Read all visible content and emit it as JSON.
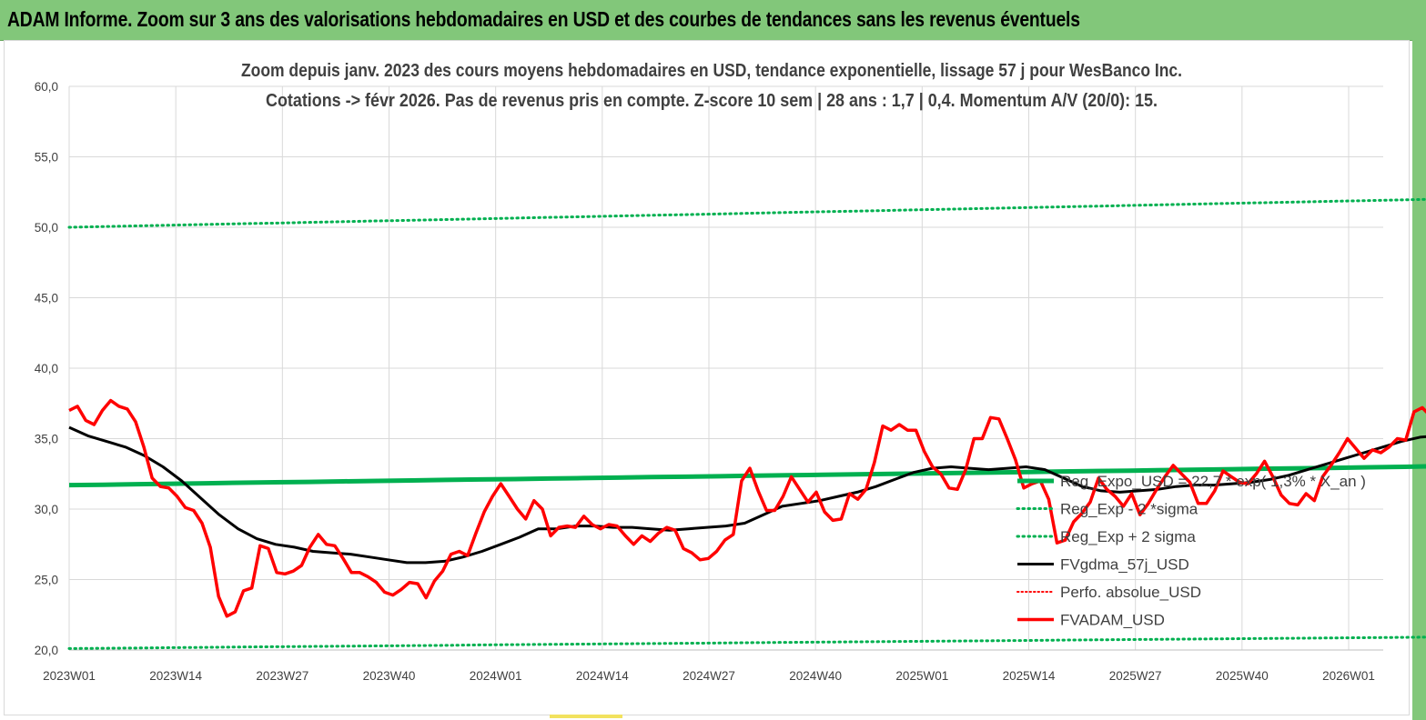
{
  "header": {
    "title": "ADAM Informe. Zoom sur 3 ans des valorisations hebdomadaires en USD et des courbes de tendances sans les revenus éventuels"
  },
  "colors": {
    "banner": "#82c77a",
    "reg_expo": "#00b050",
    "reg_band": "#00b050",
    "fvgdma": "#000000",
    "perfo": "#ff0000",
    "fvadam": "#ff0000",
    "grid": "#d9d9d9"
  },
  "chart_data": {
    "type": "line",
    "title": "Zoom depuis janv. 2023 des cours moyens hebdomadaires en USD, tendance exponentielle, lissage 57 j pour WesBanco Inc.",
    "subtitle": "Cotations -> févr 2026.  Pas de revenus pris en compte. Z-score 10 sem  | 28 ans : 1,7 | 0,4. Momentum A/V (20/0): 15.",
    "xlabel": "",
    "ylabel": "",
    "ylim": [
      20,
      60
    ],
    "y_ticks": [
      "20,0",
      "25,0",
      "30,0",
      "35,0",
      "40,0",
      "45,0",
      "50,0",
      "55,0",
      "60,0"
    ],
    "x_ticks": [
      "2023W01",
      "2023W14",
      "2023W27",
      "2023W40",
      "2024W01",
      "2024W14",
      "2024W27",
      "2024W40",
      "2025W01",
      "2025W14",
      "2025W27",
      "2025W40",
      "2026W01"
    ],
    "grid": "vertical and horizontal",
    "legend_position": "bottom-right",
    "weeks": 168,
    "series": [
      {
        "name": "Reg_Expo_USD = 22,7 * exp( 1,3% *  X_an )",
        "style": "solid-thick",
        "values": [
          31.7,
          31.73,
          31.77,
          31.8,
          31.83,
          31.87,
          31.9,
          31.93,
          31.97,
          32.0,
          32.03,
          32.07,
          32.1,
          32.13,
          32.17,
          32.2,
          32.23,
          32.27,
          32.3,
          32.33,
          32.37,
          32.4,
          32.43,
          32.47,
          32.5,
          32.53,
          32.57,
          32.6,
          32.63,
          32.67,
          32.7,
          32.73,
          32.77,
          32.8,
          32.83,
          32.87,
          32.9,
          32.93,
          32.97,
          33.0,
          33.05
        ]
      },
      {
        "name": "Reg_Exp - 2 *sigma",
        "style": "dotted",
        "values": [
          20.1,
          20.12,
          20.14,
          20.17,
          20.19,
          20.21,
          20.23,
          20.25,
          20.27,
          20.29,
          20.31,
          20.33,
          20.36,
          20.38,
          20.4,
          20.42,
          20.44,
          20.46,
          20.48,
          20.5,
          20.52,
          20.54,
          20.56,
          20.58,
          20.6,
          20.62,
          20.64,
          20.66,
          20.68,
          20.7,
          20.72,
          20.74,
          20.76,
          20.78,
          20.8,
          20.82,
          20.84,
          20.86,
          20.88,
          20.9,
          20.92
        ]
      },
      {
        "name": "Reg_Exp + 2 sigma",
        "style": "dotted",
        "values": [
          50.0,
          50.05,
          50.1,
          50.15,
          50.2,
          50.25,
          50.3,
          50.35,
          50.4,
          50.45,
          50.5,
          50.55,
          50.6,
          50.65,
          50.7,
          50.75,
          50.8,
          50.85,
          50.9,
          50.95,
          51.0,
          51.05,
          51.1,
          51.15,
          51.2,
          51.25,
          51.3,
          51.35,
          51.4,
          51.45,
          51.5,
          51.55,
          51.6,
          51.65,
          51.7,
          51.75,
          51.8,
          51.85,
          51.9,
          51.95,
          52.0
        ]
      },
      {
        "name": "FVgdma_57j_USD",
        "style": "solid",
        "values": [
          35.8,
          35.2,
          34.8,
          34.4,
          33.8,
          33.0,
          32.0,
          30.8,
          29.6,
          28.6,
          27.9,
          27.5,
          27.3,
          27.0,
          26.9,
          26.8,
          26.6,
          26.4,
          26.2,
          26.2,
          26.3,
          26.6,
          27.0,
          27.5,
          28.0,
          28.6,
          28.6,
          28.8,
          28.8,
          28.7,
          28.7,
          28.6,
          28.5,
          28.6,
          28.7,
          28.8,
          29.0,
          29.6,
          30.2,
          30.4,
          30.6,
          30.9,
          31.2,
          31.6,
          32.1,
          32.6,
          32.9,
          33.0,
          32.9,
          32.8,
          32.9,
          33.0,
          32.8,
          32.2,
          31.6,
          31.3,
          31.2,
          31.3,
          31.4,
          31.6,
          31.7,
          31.7,
          31.8,
          31.9,
          32.1,
          32.4,
          32.8,
          33.2,
          33.6,
          34.0,
          34.4,
          34.8,
          35.1,
          35.2
        ]
      },
      {
        "name": "Perfo. absolue_USD",
        "style": "dotted",
        "values": []
      },
      {
        "name": "FVADAM_USD",
        "style": "solid-thick",
        "values": [
          37.0,
          37.3,
          36.3,
          36.0,
          37.0,
          37.7,
          37.3,
          37.1,
          36.2,
          34.4,
          32.2,
          31.6,
          31.5,
          30.9,
          30.1,
          29.9,
          29.0,
          27.3,
          23.8,
          22.4,
          22.7,
          24.2,
          24.4,
          27.4,
          27.2,
          25.5,
          25.4,
          25.6,
          26.0,
          27.3,
          28.2,
          27.5,
          27.4,
          26.5,
          25.5,
          25.5,
          25.2,
          24.8,
          24.1,
          23.9,
          24.3,
          24.8,
          24.7,
          23.7,
          24.9,
          25.6,
          26.8,
          27.0,
          26.7,
          28.3,
          29.8,
          30.9,
          31.8,
          30.9,
          30.0,
          29.3,
          30.6,
          30.0,
          28.1,
          28.7,
          28.8,
          28.7,
          29.5,
          28.9,
          28.6,
          28.9,
          28.8,
          28.1,
          27.5,
          28.1,
          27.7,
          28.3,
          28.7,
          28.5,
          27.2,
          26.9,
          26.4,
          26.5,
          27.0,
          27.8,
          28.2,
          32.0,
          32.9,
          31.3,
          29.9,
          29.9,
          30.9,
          32.3,
          31.4,
          30.5,
          31.2,
          29.8,
          29.2,
          29.3,
          31.1,
          30.7,
          31.4,
          33.3,
          35.9,
          35.6,
          36.0,
          35.6,
          35.6,
          34.1,
          33.0,
          32.5,
          31.5,
          31.4,
          32.8,
          35.0,
          35.0,
          36.5,
          36.4,
          35.0,
          33.5,
          31.5,
          31.8,
          32.0,
          30.7,
          27.6,
          27.8,
          29.1,
          29.7,
          30.5,
          32.2,
          31.4,
          30.9,
          30.2,
          31.1,
          29.6,
          30.4,
          31.4,
          32.3,
          33.1,
          32.5,
          31.9,
          30.4,
          30.4,
          31.3,
          32.7,
          32.3,
          31.9,
          31.8,
          32.5,
          33.4,
          32.3,
          31.0,
          30.4,
          30.3,
          31.1,
          30.6,
          32.3,
          33.1,
          34.0,
          35.0,
          34.3,
          33.6,
          34.2,
          34.0,
          34.4,
          35.0,
          34.9,
          36.9,
          37.2,
          36.6,
          35.8
        ]
      }
    ]
  }
}
